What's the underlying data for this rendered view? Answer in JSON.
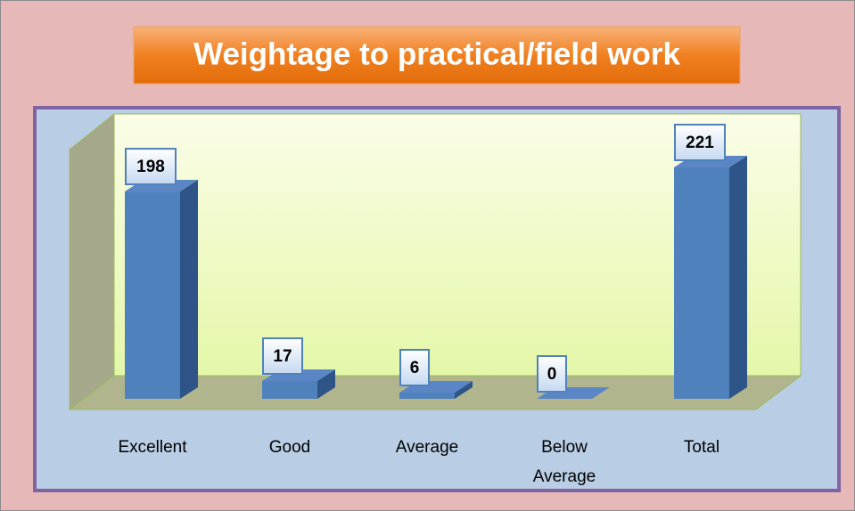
{
  "chart_data": {
    "type": "bar",
    "title": "Weightage to practical/field work",
    "categories": [
      "Excellent",
      "Good",
      "Average",
      "Below Average",
      "Total"
    ],
    "values": [
      198,
      17,
      6,
      0,
      221
    ],
    "color": "#4f81bd"
  }
}
